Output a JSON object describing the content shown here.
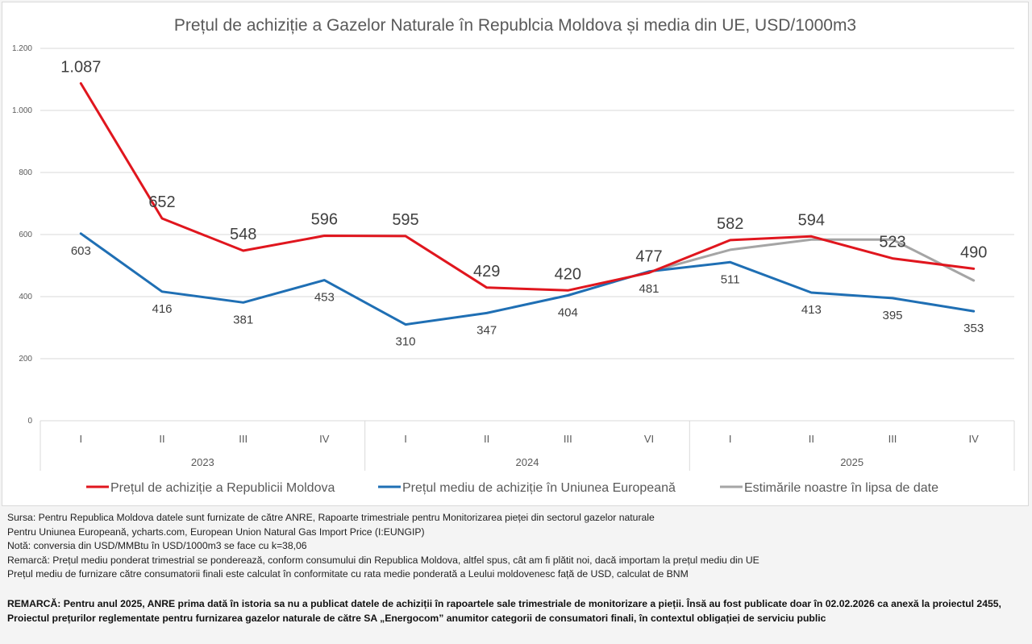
{
  "chart_data": {
    "type": "line",
    "title": "Prețul de achiziție a Gazelor Naturale în Republcia Moldova și media din UE, USD/1000m3",
    "xlabel": "",
    "ylabel": "",
    "ylim": [
      0,
      1200
    ],
    "yticks": [
      0,
      200,
      400,
      600,
      800,
      1000,
      1200
    ],
    "ytick_labels": [
      "0",
      "200",
      "400",
      "600",
      "800",
      "1.000",
      "1.200"
    ],
    "grid": true,
    "legend_position": "bottom",
    "categories": [
      "I",
      "II",
      "III",
      "IV",
      "I",
      "II",
      "III",
      "VI",
      "I",
      "II",
      "III",
      "IV"
    ],
    "groups": [
      {
        "label": "2023",
        "count": 4
      },
      {
        "label": "2024",
        "count": 4
      },
      {
        "label": "2025",
        "count": 4
      }
    ],
    "series": [
      {
        "name": "Prețul de achiziție a Republicii Moldova",
        "color": "#e0161e",
        "values": [
          1087,
          652,
          548,
          596,
          595,
          429,
          420,
          477,
          582,
          594,
          523,
          490
        ],
        "labels": [
          "1.087",
          "652",
          "548",
          "596",
          "595",
          "429",
          "420",
          "477",
          "582",
          "594",
          "523",
          "490"
        ]
      },
      {
        "name": "Prețul mediu de achiziție în Uniunea Europeană",
        "color": "#1f6fb4",
        "values": [
          603,
          416,
          381,
          453,
          310,
          347,
          404,
          481,
          511,
          413,
          395,
          353
        ],
        "labels": [
          "603",
          "416",
          "381",
          "453",
          "310",
          "347",
          "404",
          "481",
          "511",
          "413",
          "395",
          "353"
        ]
      },
      {
        "name": "Estimările noastre în lipsa de date",
        "color": "#a5a5a5",
        "values": [
          null,
          null,
          null,
          null,
          null,
          null,
          null,
          479,
          551,
          584,
          584,
          452
        ],
        "labels": []
      }
    ]
  },
  "notes": [
    "Sursa: Pentru Republica Moldova datele sunt furnizate de către ANRE, Rapoarte trimestriale pentru Monitorizarea pieței din sectorul gazelor naturale",
    "Pentru Uniunea Europeană, ycharts.com, European Union Natural Gas Import Price (I:EUNGIP)",
    "Notă: conversia din USD/MMBtu în USD/1000m3 se face cu k=38,06",
    "Remarcă: Prețul mediu ponderat trimestrial se ponderează, conform consumului din Republica Moldova, altfel spus, cât am fi plătit noi, dacă importam la prețul mediu din UE",
    "Prețul mediu de furnizare către consumatorii finali este calculat în conformitate cu rata medie ponderată a Leului moldovenesc față de USD, calculat de BNM"
  ],
  "remark": "REMARCĂ: Pentru anul 2025, ANRE prima dată în istoria sa nu a publicat datele de achiziții în rapoartele sale trimestriale de monitorizare a pieții. Însă au fost publicate doar în 02.02.2026 ca anexă la proiectul 2455, Proiectul prețurilor reglementate pentru furnizarea gazelor naturale de către SA „Energocom” anumitor categorii de consumatori finali, în contextul obligației de serviciu public"
}
